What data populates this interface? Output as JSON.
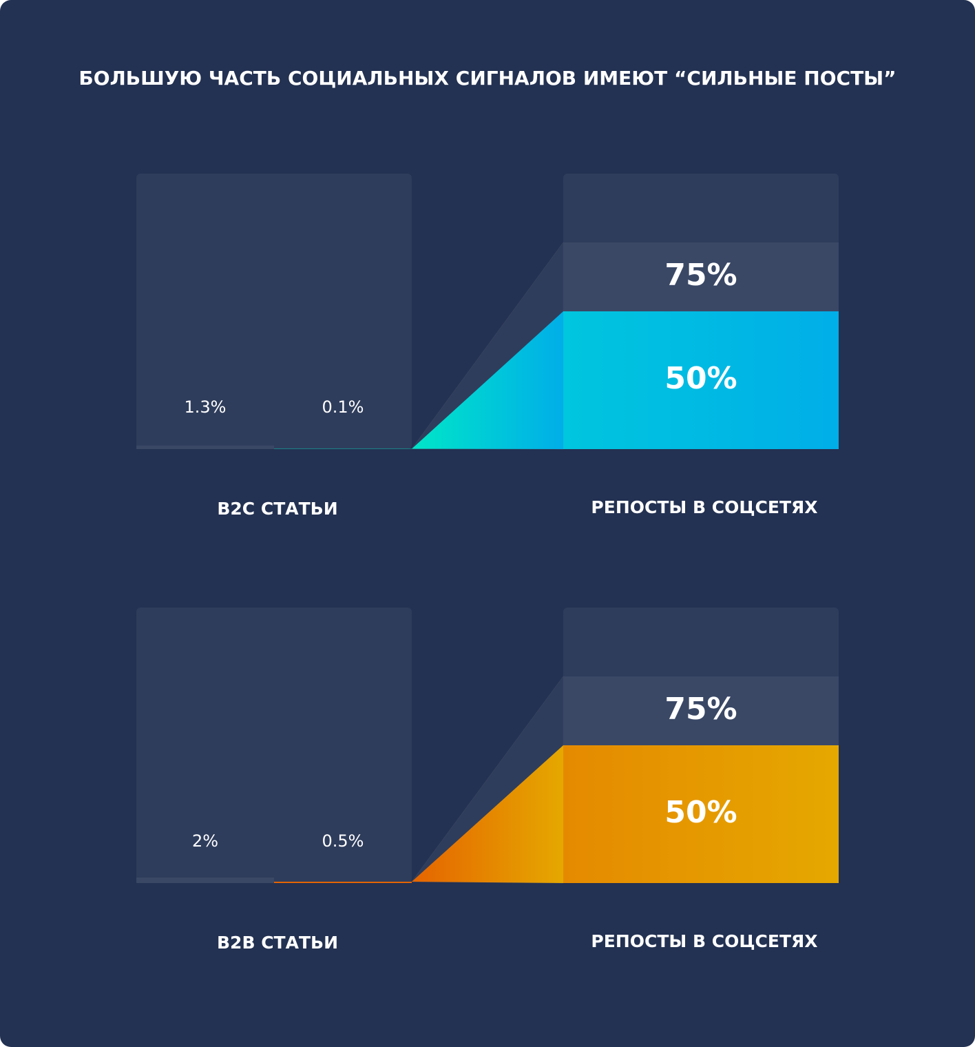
{
  "title": "БОЛЬШУЮ ЧАСТЬ СОЦИАЛЬНЫХ СИГНАЛОВ ИМЕЮТ “СИЛЬНЫЕ ПОСТЫ”",
  "chart_data": [
    {
      "type": "bar",
      "ylim": [
        0,
        100
      ],
      "muted": "#3a4866",
      "accent": [
        "#00e6c8",
        "#00c6de",
        "#00aee8"
      ],
      "groups": [
        {
          "label": "B2C СТАТЬИ",
          "values": [
            1.3,
            0.1
          ],
          "value_labels": [
            "1.3%",
            "0.1%"
          ]
        },
        {
          "label": "РЕПОСТЫ В СОЦСЕТЯХ",
          "values": [
            75,
            50
          ],
          "value_labels": [
            "75%",
            "50%"
          ]
        }
      ]
    },
    {
      "type": "bar",
      "ylim": [
        0,
        100
      ],
      "muted": "#3a4866",
      "accent": [
        "#e56400",
        "#e58a00",
        "#e5a800"
      ],
      "groups": [
        {
          "label": "B2B СТАТЬИ",
          "values": [
            2,
            0.5
          ],
          "value_labels": [
            "2%",
            "0.5%"
          ]
        },
        {
          "label": "РЕПОСТЫ В СОЦСЕТЯХ",
          "values": [
            75,
            50
          ],
          "value_labels": [
            "75%",
            "50%"
          ]
        }
      ]
    }
  ]
}
